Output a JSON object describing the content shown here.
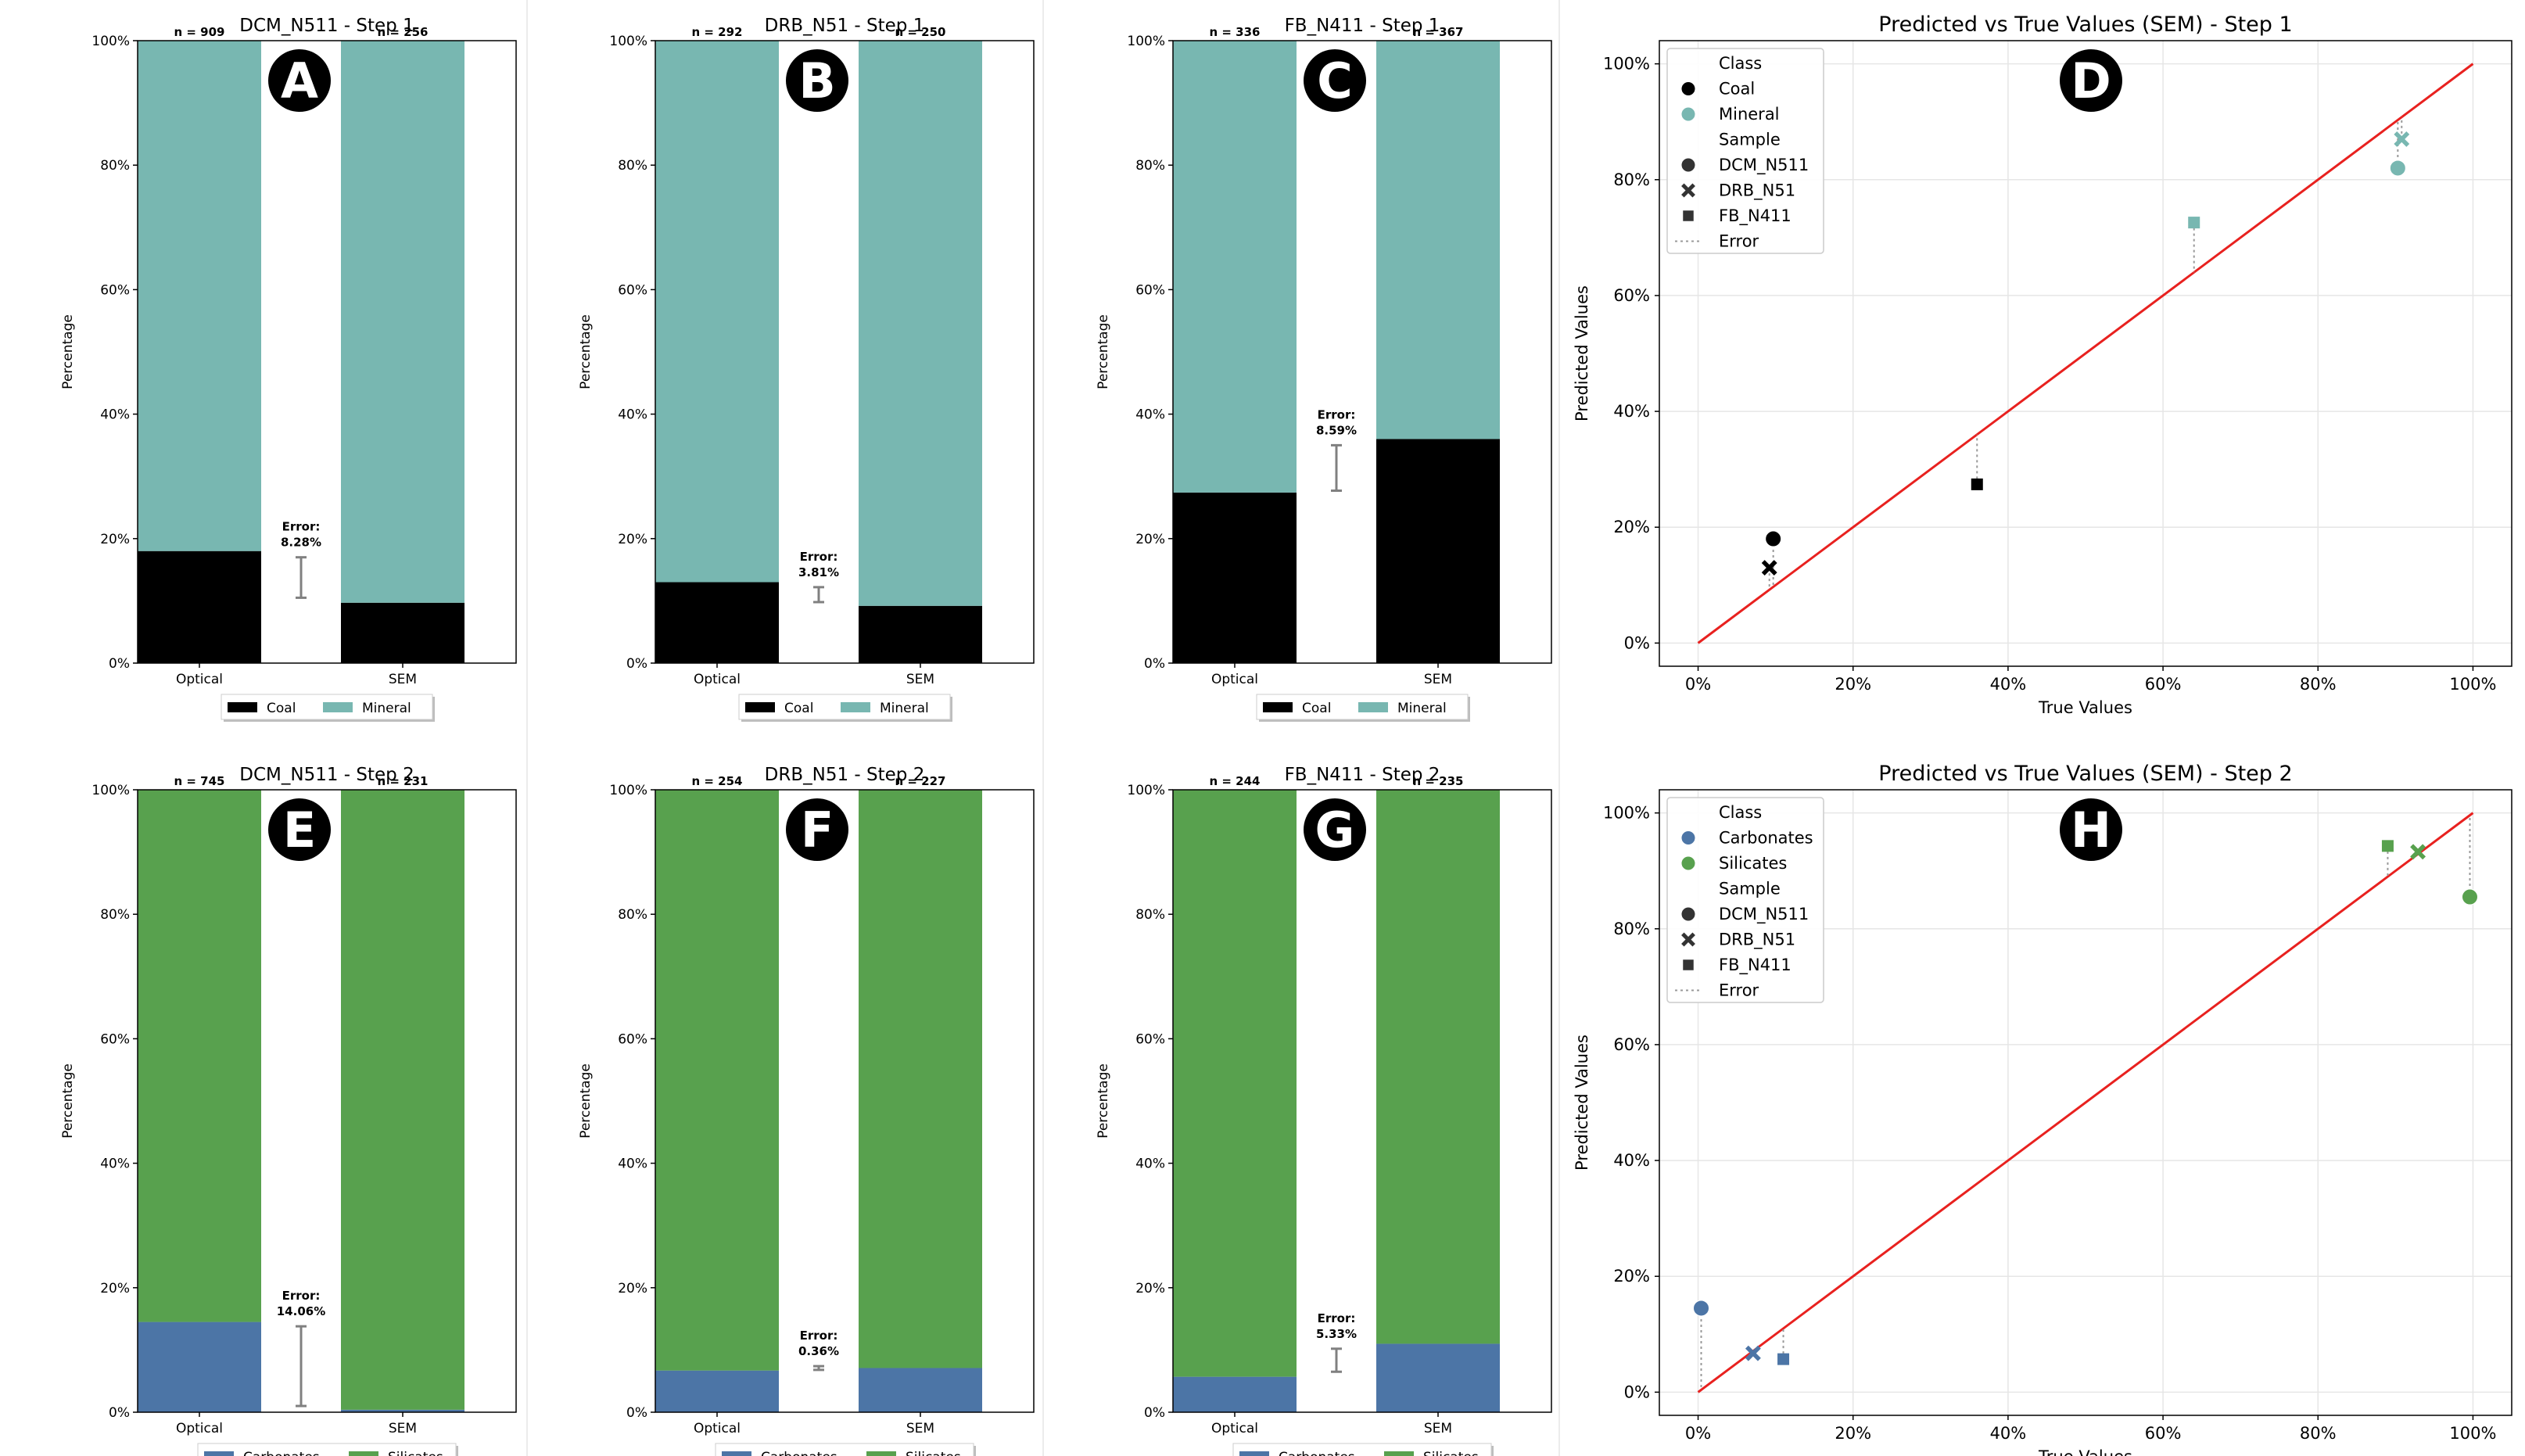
{
  "colors": {
    "coal": "#000000",
    "mineral": "#78b7b1",
    "carbonates": "#4c75a6",
    "silicates": "#58a14e",
    "identity_line": "#e8211f",
    "error_bar": "#808080",
    "grid": "#e6e6e6"
  },
  "chart_data": [
    {
      "type": "bar",
      "stacked": true,
      "panel_label": "A",
      "title": "DCM_N511 - Step 1",
      "ylabel": "Percentage",
      "categories": [
        "Optical",
        "SEM"
      ],
      "n_labels": [
        "n = 909",
        "n = 256"
      ],
      "series": [
        {
          "name": "Coal",
          "color_key": "coal",
          "values": [
            18.0,
            9.7
          ]
        },
        {
          "name": "Mineral",
          "color_key": "mineral",
          "values": [
            82.0,
            90.3
          ]
        }
      ],
      "error_label": [
        "Error:",
        "8.28%"
      ],
      "error_range": [
        10.5,
        17.0
      ],
      "ylim": [
        0,
        100
      ],
      "yticks": [
        "0%",
        "20%",
        "40%",
        "60%",
        "80%",
        "100%"
      ],
      "legend": [
        "Coal",
        "Mineral"
      ]
    },
    {
      "type": "bar",
      "stacked": true,
      "panel_label": "B",
      "title": "DRB_N51 - Step 1",
      "ylabel": "Percentage",
      "categories": [
        "Optical",
        "SEM"
      ],
      "n_labels": [
        "n = 292",
        "n = 250"
      ],
      "series": [
        {
          "name": "Coal",
          "color_key": "coal",
          "values": [
            13.0,
            9.2
          ]
        },
        {
          "name": "Mineral",
          "color_key": "mineral",
          "values": [
            87.0,
            90.8
          ]
        }
      ],
      "error_label": [
        "Error:",
        "3.81%"
      ],
      "error_range": [
        9.8,
        12.2
      ],
      "ylim": [
        0,
        100
      ],
      "yticks": [
        "0%",
        "20%",
        "40%",
        "60%",
        "80%",
        "100%"
      ],
      "legend": [
        "Coal",
        "Mineral"
      ]
    },
    {
      "type": "bar",
      "stacked": true,
      "panel_label": "C",
      "title": "FB_N411 - Step 1",
      "ylabel": "Percentage",
      "categories": [
        "Optical",
        "SEM"
      ],
      "n_labels": [
        "n = 336",
        "n = 367"
      ],
      "series": [
        {
          "name": "Coal",
          "color_key": "coal",
          "values": [
            27.4,
            36.0
          ]
        },
        {
          "name": "Mineral",
          "color_key": "mineral",
          "values": [
            72.6,
            64.0
          ]
        }
      ],
      "error_label": [
        "Error:",
        "8.59%"
      ],
      "error_range": [
        27.7,
        35.0
      ],
      "ylim": [
        0,
        100
      ],
      "yticks": [
        "0%",
        "20%",
        "40%",
        "60%",
        "80%",
        "100%"
      ],
      "legend": [
        "Coal",
        "Mineral"
      ]
    },
    {
      "type": "scatter",
      "panel_label": "D",
      "title": "Predicted vs True Values (SEM)  - Step 1",
      "xlabel": "True Values",
      "ylabel": "Predicted Values",
      "xlim": [
        -5,
        105
      ],
      "ylim": [
        -4,
        104
      ],
      "ticks": [
        0,
        20,
        40,
        60,
        80,
        100
      ],
      "ticklabels": [
        "0%",
        "20%",
        "40%",
        "60%",
        "80%",
        "100%"
      ],
      "points": [
        {
          "class": "Coal",
          "sample": "DCM_N511",
          "x": 9.7,
          "y": 18.0
        },
        {
          "class": "Coal",
          "sample": "DRB_N51",
          "x": 9.2,
          "y": 13.0
        },
        {
          "class": "Coal",
          "sample": "FB_N411",
          "x": 36.0,
          "y": 27.4
        },
        {
          "class": "Mineral",
          "sample": "DCM_N511",
          "x": 90.3,
          "y": 82.0
        },
        {
          "class": "Mineral",
          "sample": "DRB_N51",
          "x": 90.8,
          "y": 87.0
        },
        {
          "class": "Mineral",
          "sample": "FB_N411",
          "x": 64.0,
          "y": 72.6
        }
      ],
      "legend": {
        "class_title": "Class",
        "classes": [
          {
            "name": "Coal",
            "color_key": "coal"
          },
          {
            "name": "Mineral",
            "color_key": "mineral"
          }
        ],
        "sample_title": "Sample",
        "samples": [
          {
            "name": "DCM_N511",
            "marker": "circle"
          },
          {
            "name": "DRB_N51",
            "marker": "x"
          },
          {
            "name": "FB_N411",
            "marker": "square"
          }
        ],
        "error_label": "Error"
      }
    },
    {
      "type": "bar",
      "stacked": true,
      "panel_label": "E",
      "title": "DCM_N511 - Step 2",
      "ylabel": "Percentage",
      "categories": [
        "Optical",
        "SEM"
      ],
      "n_labels": [
        "n = 745",
        "n = 231"
      ],
      "series": [
        {
          "name": "Carbonates",
          "color_key": "carbonates",
          "values": [
            14.5,
            0.4
          ]
        },
        {
          "name": "Silicates",
          "color_key": "silicates",
          "values": [
            85.5,
            99.6
          ]
        }
      ],
      "error_label": [
        "Error:",
        "14.06%"
      ],
      "error_range": [
        1.0,
        13.8
      ],
      "ylim": [
        0,
        100
      ],
      "yticks": [
        "0%",
        "20%",
        "40%",
        "60%",
        "80%",
        "100%"
      ],
      "legend": [
        "Carbonates",
        "Silicates"
      ]
    },
    {
      "type": "bar",
      "stacked": true,
      "panel_label": "F",
      "title": "DRB_N51 - Step 2",
      "ylabel": "Percentage",
      "categories": [
        "Optical",
        "SEM"
      ],
      "n_labels": [
        "n = 254",
        "n = 227"
      ],
      "series": [
        {
          "name": "Carbonates",
          "color_key": "carbonates",
          "values": [
            6.7,
            7.1
          ]
        },
        {
          "name": "Silicates",
          "color_key": "silicates",
          "values": [
            93.3,
            92.9
          ]
        }
      ],
      "error_label": [
        "Error:",
        "0.36%"
      ],
      "error_range": [
        6.8,
        7.4
      ],
      "ylim": [
        0,
        100
      ],
      "yticks": [
        "0%",
        "20%",
        "40%",
        "60%",
        "80%",
        "100%"
      ],
      "legend": [
        "Carbonates",
        "Silicates"
      ]
    },
    {
      "type": "bar",
      "stacked": true,
      "panel_label": "G",
      "title": "FB_N411 - Step 2",
      "ylabel": "Percentage",
      "categories": [
        "Optical",
        "SEM"
      ],
      "n_labels": [
        "n = 244",
        "n = 235"
      ],
      "series": [
        {
          "name": "Carbonates",
          "color_key": "carbonates",
          "values": [
            5.7,
            11.0
          ]
        },
        {
          "name": "Silicates",
          "color_key": "silicates",
          "values": [
            94.3,
            89.0
          ]
        }
      ],
      "error_label": [
        "Error:",
        "5.33%"
      ],
      "error_range": [
        6.5,
        10.2
      ],
      "ylim": [
        0,
        100
      ],
      "yticks": [
        "0%",
        "20%",
        "40%",
        "60%",
        "80%",
        "100%"
      ],
      "legend": [
        "Carbonates",
        "Silicates"
      ]
    },
    {
      "type": "scatter",
      "panel_label": "H",
      "title": "Predicted vs True Values (SEM)  - Step 2",
      "xlabel": "True Values",
      "ylabel": "Predicted Values",
      "xlim": [
        -5,
        105
      ],
      "ylim": [
        -4,
        104
      ],
      "ticks": [
        0,
        20,
        40,
        60,
        80,
        100
      ],
      "ticklabels": [
        "0%",
        "20%",
        "40%",
        "60%",
        "80%",
        "100%"
      ],
      "points": [
        {
          "class": "Carbonates",
          "sample": "DCM_N511",
          "x": 0.4,
          "y": 14.5
        },
        {
          "class": "Carbonates",
          "sample": "DRB_N51",
          "x": 7.1,
          "y": 6.7
        },
        {
          "class": "Carbonates",
          "sample": "FB_N411",
          "x": 11.0,
          "y": 5.7
        },
        {
          "class": "Silicates",
          "sample": "DCM_N511",
          "x": 99.6,
          "y": 85.5
        },
        {
          "class": "Silicates",
          "sample": "DRB_N51",
          "x": 92.9,
          "y": 93.3
        },
        {
          "class": "Silicates",
          "sample": "FB_N411",
          "x": 89.0,
          "y": 94.3
        }
      ],
      "legend": {
        "class_title": "Class",
        "classes": [
          {
            "name": "Carbonates",
            "color_key": "carbonates"
          },
          {
            "name": "Silicates",
            "color_key": "silicates"
          }
        ],
        "sample_title": "Sample",
        "samples": [
          {
            "name": "DCM_N511",
            "marker": "circle"
          },
          {
            "name": "DRB_N51",
            "marker": "x"
          },
          {
            "name": "FB_N411",
            "marker": "square"
          }
        ],
        "error_label": "Error"
      }
    }
  ]
}
